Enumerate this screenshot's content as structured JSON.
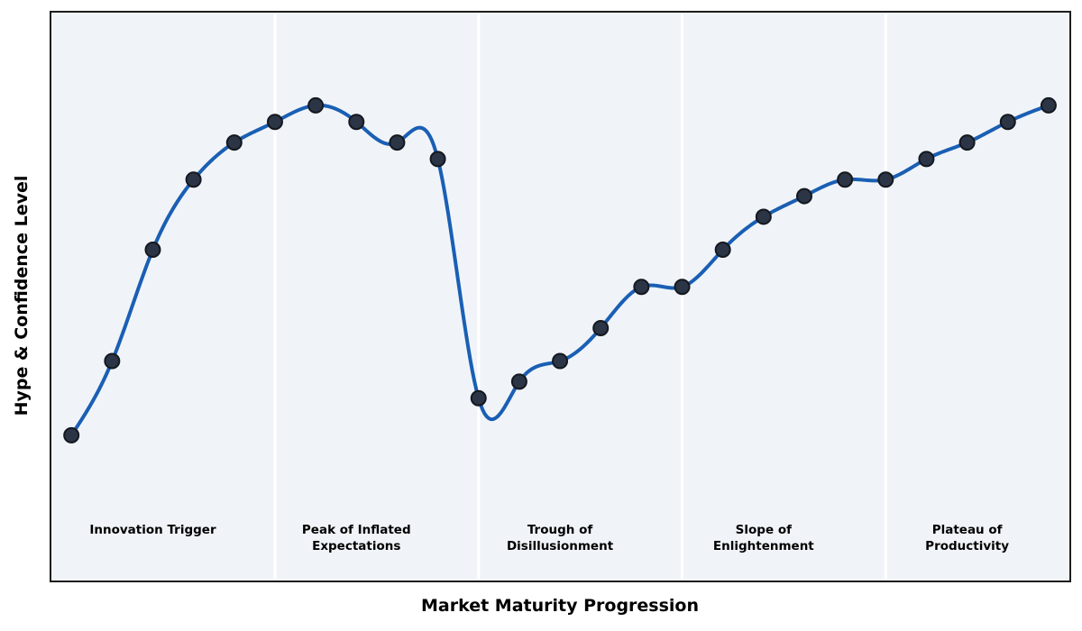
{
  "figure": {
    "background": "#ffffff",
    "plot_background": "#f0f4f8",
    "border_color": "#1c1c1c",
    "text_color": "#000000"
  },
  "chart_data": {
    "type": "line",
    "title": "",
    "xlabel": "Market Maturity Progression",
    "ylabel": "Hype & Confidence Level",
    "x": [
      1,
      2,
      3,
      4,
      5,
      6,
      7,
      8,
      9,
      10,
      11,
      12,
      13,
      14,
      15,
      16,
      17,
      18,
      19,
      20,
      21,
      22,
      23,
      24,
      25
    ],
    "values": [
      10,
      28,
      55,
      72,
      81,
      86,
      90,
      86,
      81,
      77,
      19,
      23,
      28,
      36,
      46,
      46,
      55,
      63,
      68,
      72,
      72,
      77,
      81,
      86,
      90
    ],
    "series_name": "hype-confidence-curve",
    "xlim": [
      0.52,
      25.5
    ],
    "ylim": [
      -25,
      112.5
    ],
    "grid": false,
    "legend": false,
    "axis_ticks": false,
    "smooth": "cubic-spline",
    "line_color": "#1a5fb4",
    "line_width": 4,
    "marker": {
      "shape": "circle",
      "radius": 8,
      "fill": "#2b3545",
      "edge_color": "#14181f",
      "edge_width": 2
    },
    "phase_separator_color": "#ffffff",
    "phase_separator_width": 3,
    "phase_boundaries_x": [
      6,
      11,
      16,
      21
    ],
    "phase_label_y": -13,
    "phases": [
      {
        "label": "Innovation Trigger",
        "center_x": 3
      },
      {
        "label": "Peak of Inflated\nExpectations",
        "center_x": 8
      },
      {
        "label": "Trough of\nDisillusionment",
        "center_x": 13
      },
      {
        "label": "Slope of\nEnlightenment",
        "center_x": 18
      },
      {
        "label": "Plateau of\nProductivity",
        "center_x": 23
      }
    ]
  }
}
